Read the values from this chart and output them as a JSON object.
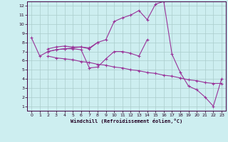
{
  "xlabel": "Windchill (Refroidissement éolien,°C)",
  "background_color": "#cdeef0",
  "grid_color": "#aacccc",
  "line_color": "#993399",
  "xlim": [
    -0.5,
    23.5
  ],
  "ylim": [
    0.5,
    12.5
  ],
  "xticks": [
    0,
    1,
    2,
    3,
    4,
    5,
    6,
    7,
    8,
    9,
    10,
    11,
    12,
    13,
    14,
    15,
    16,
    17,
    18,
    19,
    20,
    21,
    22,
    23
  ],
  "yticks": [
    1,
    2,
    3,
    4,
    5,
    6,
    7,
    8,
    9,
    10,
    11,
    12
  ],
  "lines": [
    {
      "x": [
        0,
        1,
        2,
        3,
        4,
        5,
        6,
        7,
        8,
        9,
        10,
        11,
        12,
        13,
        14,
        15,
        16,
        17,
        18,
        19,
        20,
        21,
        22,
        23
      ],
      "y": [
        8.5,
        6.5,
        7.0,
        7.2,
        7.3,
        7.4,
        7.5,
        7.3,
        8.0,
        8.3,
        10.3,
        10.7,
        11.0,
        11.5,
        10.5,
        12.2,
        12.5,
        6.7,
        4.7,
        3.2,
        2.8,
        2.0,
        1.0,
        4.0
      ]
    },
    {
      "x": [
        2,
        3,
        4,
        5,
        6,
        7,
        8
      ],
      "y": [
        7.3,
        7.5,
        7.6,
        7.5,
        7.5,
        7.4,
        8.0
      ]
    },
    {
      "x": [
        2,
        3,
        4,
        5,
        6,
        7,
        8,
        9,
        10,
        11,
        12,
        13,
        14
      ],
      "y": [
        7.0,
        7.2,
        7.3,
        7.3,
        7.2,
        5.2,
        5.3,
        6.2,
        7.0,
        7.0,
        6.8,
        6.5,
        8.3
      ]
    },
    {
      "x": [
        2,
        3,
        4,
        5,
        6,
        7,
        8,
        9,
        10,
        11,
        12,
        13,
        14,
        15,
        16,
        17,
        18,
        19,
        20,
        21,
        22,
        23
      ],
      "y": [
        6.5,
        6.3,
        6.2,
        6.1,
        5.9,
        5.8,
        5.6,
        5.5,
        5.3,
        5.2,
        5.0,
        4.9,
        4.7,
        4.6,
        4.4,
        4.3,
        4.1,
        3.9,
        3.8,
        3.6,
        3.5,
        3.5
      ]
    }
  ]
}
